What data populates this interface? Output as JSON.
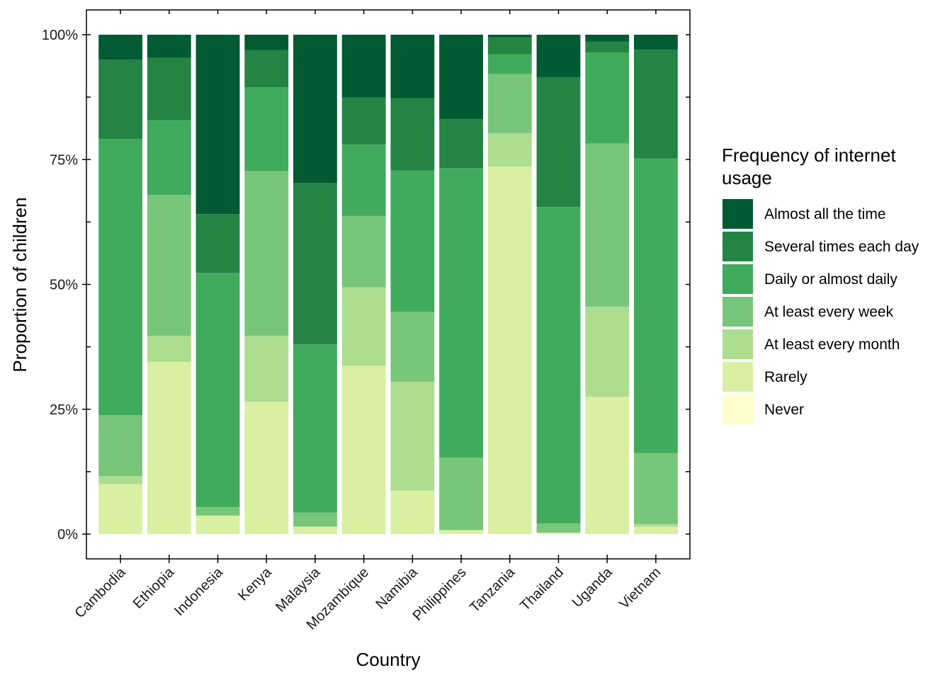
{
  "chart_data": {
    "type": "bar",
    "stacked": true,
    "orientation": "vertical",
    "xlabel": "Country",
    "ylabel": "Proportion of children",
    "ylim": [
      0,
      1
    ],
    "y_ticks": [
      0,
      0.25,
      0.5,
      0.75,
      1
    ],
    "y_tick_labels": [
      "0%",
      "25%",
      "50%",
      "75%",
      "100%"
    ],
    "grid": false,
    "legend": {
      "title_lines": [
        "Frequency of internet",
        "usage"
      ],
      "placement": "right"
    },
    "categories": [
      "Cambodia",
      "Ethiopia",
      "Indonesia",
      "Kenya",
      "Malaysia",
      "Mozambique",
      "Namibia",
      "Philippines",
      "Tanzania",
      "Thailand",
      "Uganda",
      "Vietnam"
    ],
    "series": [
      {
        "name": "Never",
        "color": "#ffffcc",
        "values": [
          0.0,
          0.0,
          0.0,
          0.0,
          0.0,
          0.0,
          0.0,
          0.0,
          0.0,
          0.0,
          0.0,
          0.0
        ]
      },
      {
        "name": "Rarely",
        "color": "#d9f0a3",
        "values": [
          0.1,
          0.345,
          0.037,
          0.265,
          0.015,
          0.337,
          0.087,
          0.008,
          0.736,
          0.003,
          0.275,
          0.015
        ]
      },
      {
        "name": "At least every month",
        "color": "#addd8e",
        "values": [
          0.016,
          0.052,
          0.0,
          0.132,
          0.0,
          0.157,
          0.218,
          0.0,
          0.067,
          0.0,
          0.18,
          0.005
        ]
      },
      {
        "name": "At least every week",
        "color": "#78c679",
        "values": [
          0.122,
          0.282,
          0.017,
          0.33,
          0.028,
          0.143,
          0.14,
          0.145,
          0.118,
          0.018,
          0.327,
          0.142
        ]
      },
      {
        "name": "Daily or almost daily",
        "color": "#41ab5d",
        "values": [
          0.553,
          0.15,
          0.469,
          0.168,
          0.337,
          0.143,
          0.283,
          0.58,
          0.04,
          0.634,
          0.182,
          0.59
        ]
      },
      {
        "name": "Several times each day",
        "color": "#238443",
        "values": [
          0.159,
          0.125,
          0.118,
          0.074,
          0.323,
          0.094,
          0.145,
          0.098,
          0.034,
          0.26,
          0.022,
          0.218
        ]
      },
      {
        "name": "Almost all the time",
        "color": "#005a32",
        "values": [
          0.05,
          0.046,
          0.359,
          0.031,
          0.297,
          0.126,
          0.127,
          0.169,
          0.005,
          0.085,
          0.014,
          0.03
        ]
      }
    ]
  }
}
